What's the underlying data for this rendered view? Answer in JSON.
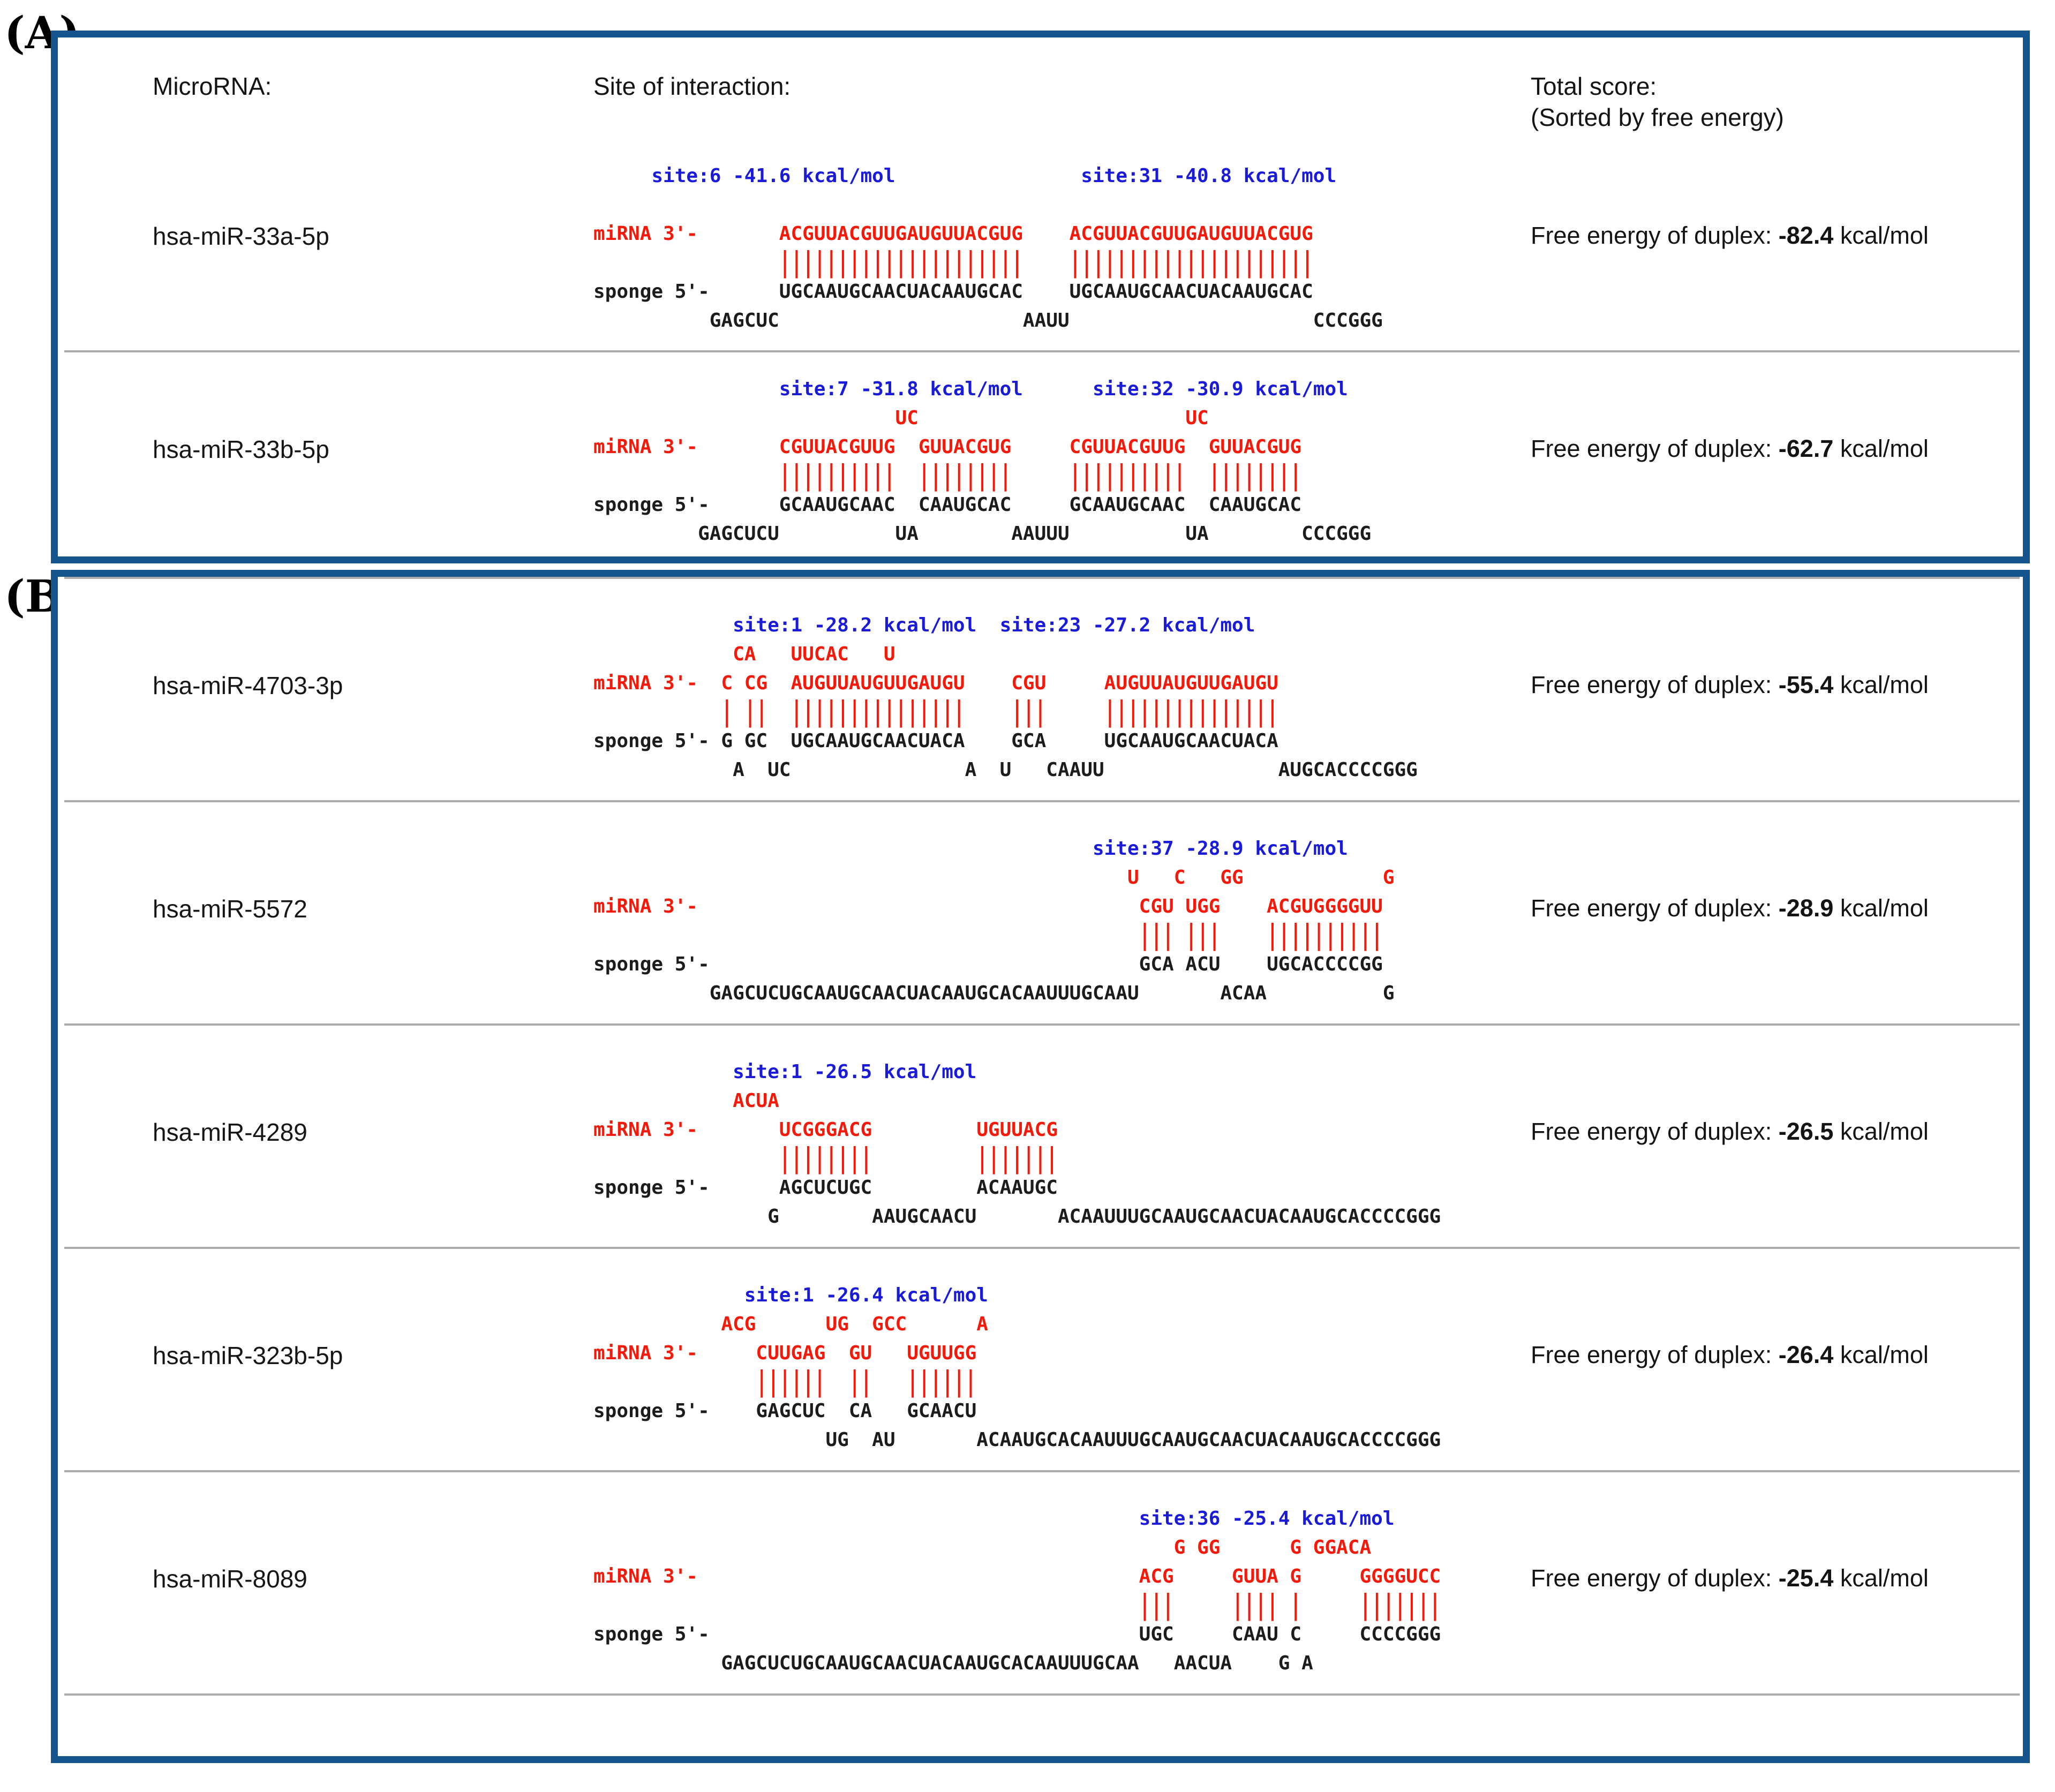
{
  "panels": {
    "a_label": "(A)",
    "b_label": "(B)"
  },
  "header": {
    "col_microrna": "MicroRNA:",
    "col_site": "Site of interaction:",
    "col_total_1": "Total score:",
    "col_total_2": "(Sorted by free energy)"
  },
  "energy": {
    "prefix": "Free energy of duplex:",
    "unit": "kcal/mol"
  },
  "colors": {
    "panel_border_blue": "#15558f",
    "site_text_blue": "#1a1ad9",
    "sequence_red": "#f5190a",
    "sequence_black": "#1c1c1c",
    "divider_gray": "#ababab"
  },
  "rows": [
    {
      "panel": "A",
      "name": "hsa-miR-33a-5p",
      "energy_value": "-82.4",
      "sites": [
        "site:6 -41.6 kcal/mol",
        "site:31 -40.8 kcal/mol"
      ],
      "lines": [
        {
          "type": "site",
          "text": "     site:6 -41.6 kcal/mol                site:31 -40.8 kcal/mol"
        },
        {
          "type": "blank",
          "text": ""
        },
        {
          "type": "red",
          "text": "miRNA 3'-       ACGUUACGUUGAUGUUACGUG    ACGUUACGUUGAUGUUACGUG"
        },
        {
          "type": "pipes",
          "text": "                |||||||||||||||||||||    |||||||||||||||||||||"
        },
        {
          "type": "black",
          "text": "sponge 5'-      UGCAAUGCAACUACAAUGCAC    UGCAAUGCAACUACAAUGCAC"
        },
        {
          "type": "bottom",
          "text": "          GAGCUC                     AAUU                     CCCGGG"
        }
      ]
    },
    {
      "panel": "A",
      "name": "hsa-miR-33b-5p",
      "energy_value": "-62.7",
      "sites": [
        "site:7 -31.8 kcal/mol",
        "site:32 -30.9 kcal/mol"
      ],
      "lines": [
        {
          "type": "site",
          "text": "                site:7 -31.8 kcal/mol      site:32 -30.9 kcal/mol"
        },
        {
          "type": "bulge",
          "text": "                          UC                       UC"
        },
        {
          "type": "red",
          "text": "miRNA 3'-       CGUUACGUUG  GUUACGUG     CGUUACGUUG  GUUACGUG"
        },
        {
          "type": "pipes",
          "text": "                ||||||||||  ||||||||     ||||||||||  ||||||||"
        },
        {
          "type": "black",
          "text": "sponge 5'-      GCAAUGCAAC  CAAUGCAC     GCAAUGCAAC  CAAUGCAC"
        },
        {
          "type": "bottom",
          "text": "         GAGCUCU          UA        AAUUU          UA        CCCGGG"
        }
      ]
    },
    {
      "panel": "B",
      "name": "hsa-miR-4703-3p",
      "energy_value": "-55.4",
      "sites": [
        "site:1 -28.2 kcal/mol",
        "site:23 -27.2 kcal/mol"
      ],
      "lines": [
        {
          "type": "site",
          "text": "            site:1 -28.2 kcal/mol  site:23 -27.2 kcal/mol"
        },
        {
          "type": "bulge",
          "text": "            CA   UUCAC   U"
        },
        {
          "type": "red",
          "text": "miRNA 3'-  C CG  AUGUUAUGUUGAUGU    CGU     AUGUUAUGUUGAUGU"
        },
        {
          "type": "pipes",
          "text": "           | ||  |||||||||||||||    |||     |||||||||||||||"
        },
        {
          "type": "black",
          "text": "sponge 5'- G GC  UGCAAUGCAACUACA    GCA     UGCAAUGCAACUACA"
        },
        {
          "type": "bottom",
          "text": "            A  UC               A  U   CAAUU               AUGCACCCCGGG"
        }
      ]
    },
    {
      "panel": "B",
      "name": "hsa-miR-5572",
      "energy_value": "-28.9",
      "sites": [
        "site:37 -28.9 kcal/mol"
      ],
      "lines": [
        {
          "type": "site",
          "text": "                                           site:37 -28.9 kcal/mol"
        },
        {
          "type": "bulge",
          "text": "                                              U   C   GG            G"
        },
        {
          "type": "red",
          "text": "miRNA 3'-                                      CGU UGG    ACGUGGGGUU"
        },
        {
          "type": "pipes",
          "text": "                                               ||| |||    ||||||||||"
        },
        {
          "type": "black",
          "text": "sponge 5'-                                     GCA ACU    UGCACCCCGG"
        },
        {
          "type": "bottom",
          "text": "          GAGCUCUGCAAUGCAACUACAAUGCACAAUUUGCAAU       ACAA          G"
        }
      ]
    },
    {
      "panel": "B",
      "name": "hsa-miR-4289",
      "energy_value": "-26.5",
      "sites": [
        "site:1 -26.5 kcal/mol"
      ],
      "lines": [
        {
          "type": "site",
          "text": "            site:1 -26.5 kcal/mol"
        },
        {
          "type": "bulge",
          "text": "            ACUA"
        },
        {
          "type": "red",
          "text": "miRNA 3'-       UCGGGACG         UGUUACG"
        },
        {
          "type": "pipes",
          "text": "                ||||||||         |||||||"
        },
        {
          "type": "black",
          "text": "sponge 5'-      AGCUCUGC         ACAAUGC"
        },
        {
          "type": "bottom",
          "text": "               G        AAUGCAACU       ACAAUUUGCAAUGCAACUACAAUGCACCCCGGG"
        }
      ]
    },
    {
      "panel": "B",
      "name": "hsa-miR-323b-5p",
      "energy_value": "-26.4",
      "sites": [
        "site:1 -26.4 kcal/mol"
      ],
      "lines": [
        {
          "type": "site",
          "text": "             site:1 -26.4 kcal/mol"
        },
        {
          "type": "bulge",
          "text": "           ACG      UG  GCC      A"
        },
        {
          "type": "red",
          "text": "miRNA 3'-     CUUGAG  GU   UGUUGG"
        },
        {
          "type": "pipes",
          "text": "              ||||||  ||   ||||||"
        },
        {
          "type": "black",
          "text": "sponge 5'-    GAGCUC  CA   GCAACU"
        },
        {
          "type": "bottom",
          "text": "                    UG  AU       ACAAUGCACAAUUUGCAAUGCAACUACAAUGCACCCCGGG"
        }
      ]
    },
    {
      "panel": "B",
      "name": "hsa-miR-8089",
      "energy_value": "-25.4",
      "sites": [
        "site:36 -25.4 kcal/mol"
      ],
      "lines": [
        {
          "type": "site",
          "text": "                                               site:36 -25.4 kcal/mol"
        },
        {
          "type": "bulge",
          "text": "                                                  G GG      G GGACA"
        },
        {
          "type": "red",
          "text": "miRNA 3'-                                      ACG     GUUA G     GGGGUCC"
        },
        {
          "type": "pipes",
          "text": "                                               |||     |||| |     |||||||"
        },
        {
          "type": "black",
          "text": "sponge 5'-                                     UGC     CAAU C     CCCCGGG"
        },
        {
          "type": "bottom",
          "text": "           GAGCUCUGCAAUGCAACUACAAUGCACAAUUUGCAA   AACUA    G A"
        }
      ]
    }
  ]
}
